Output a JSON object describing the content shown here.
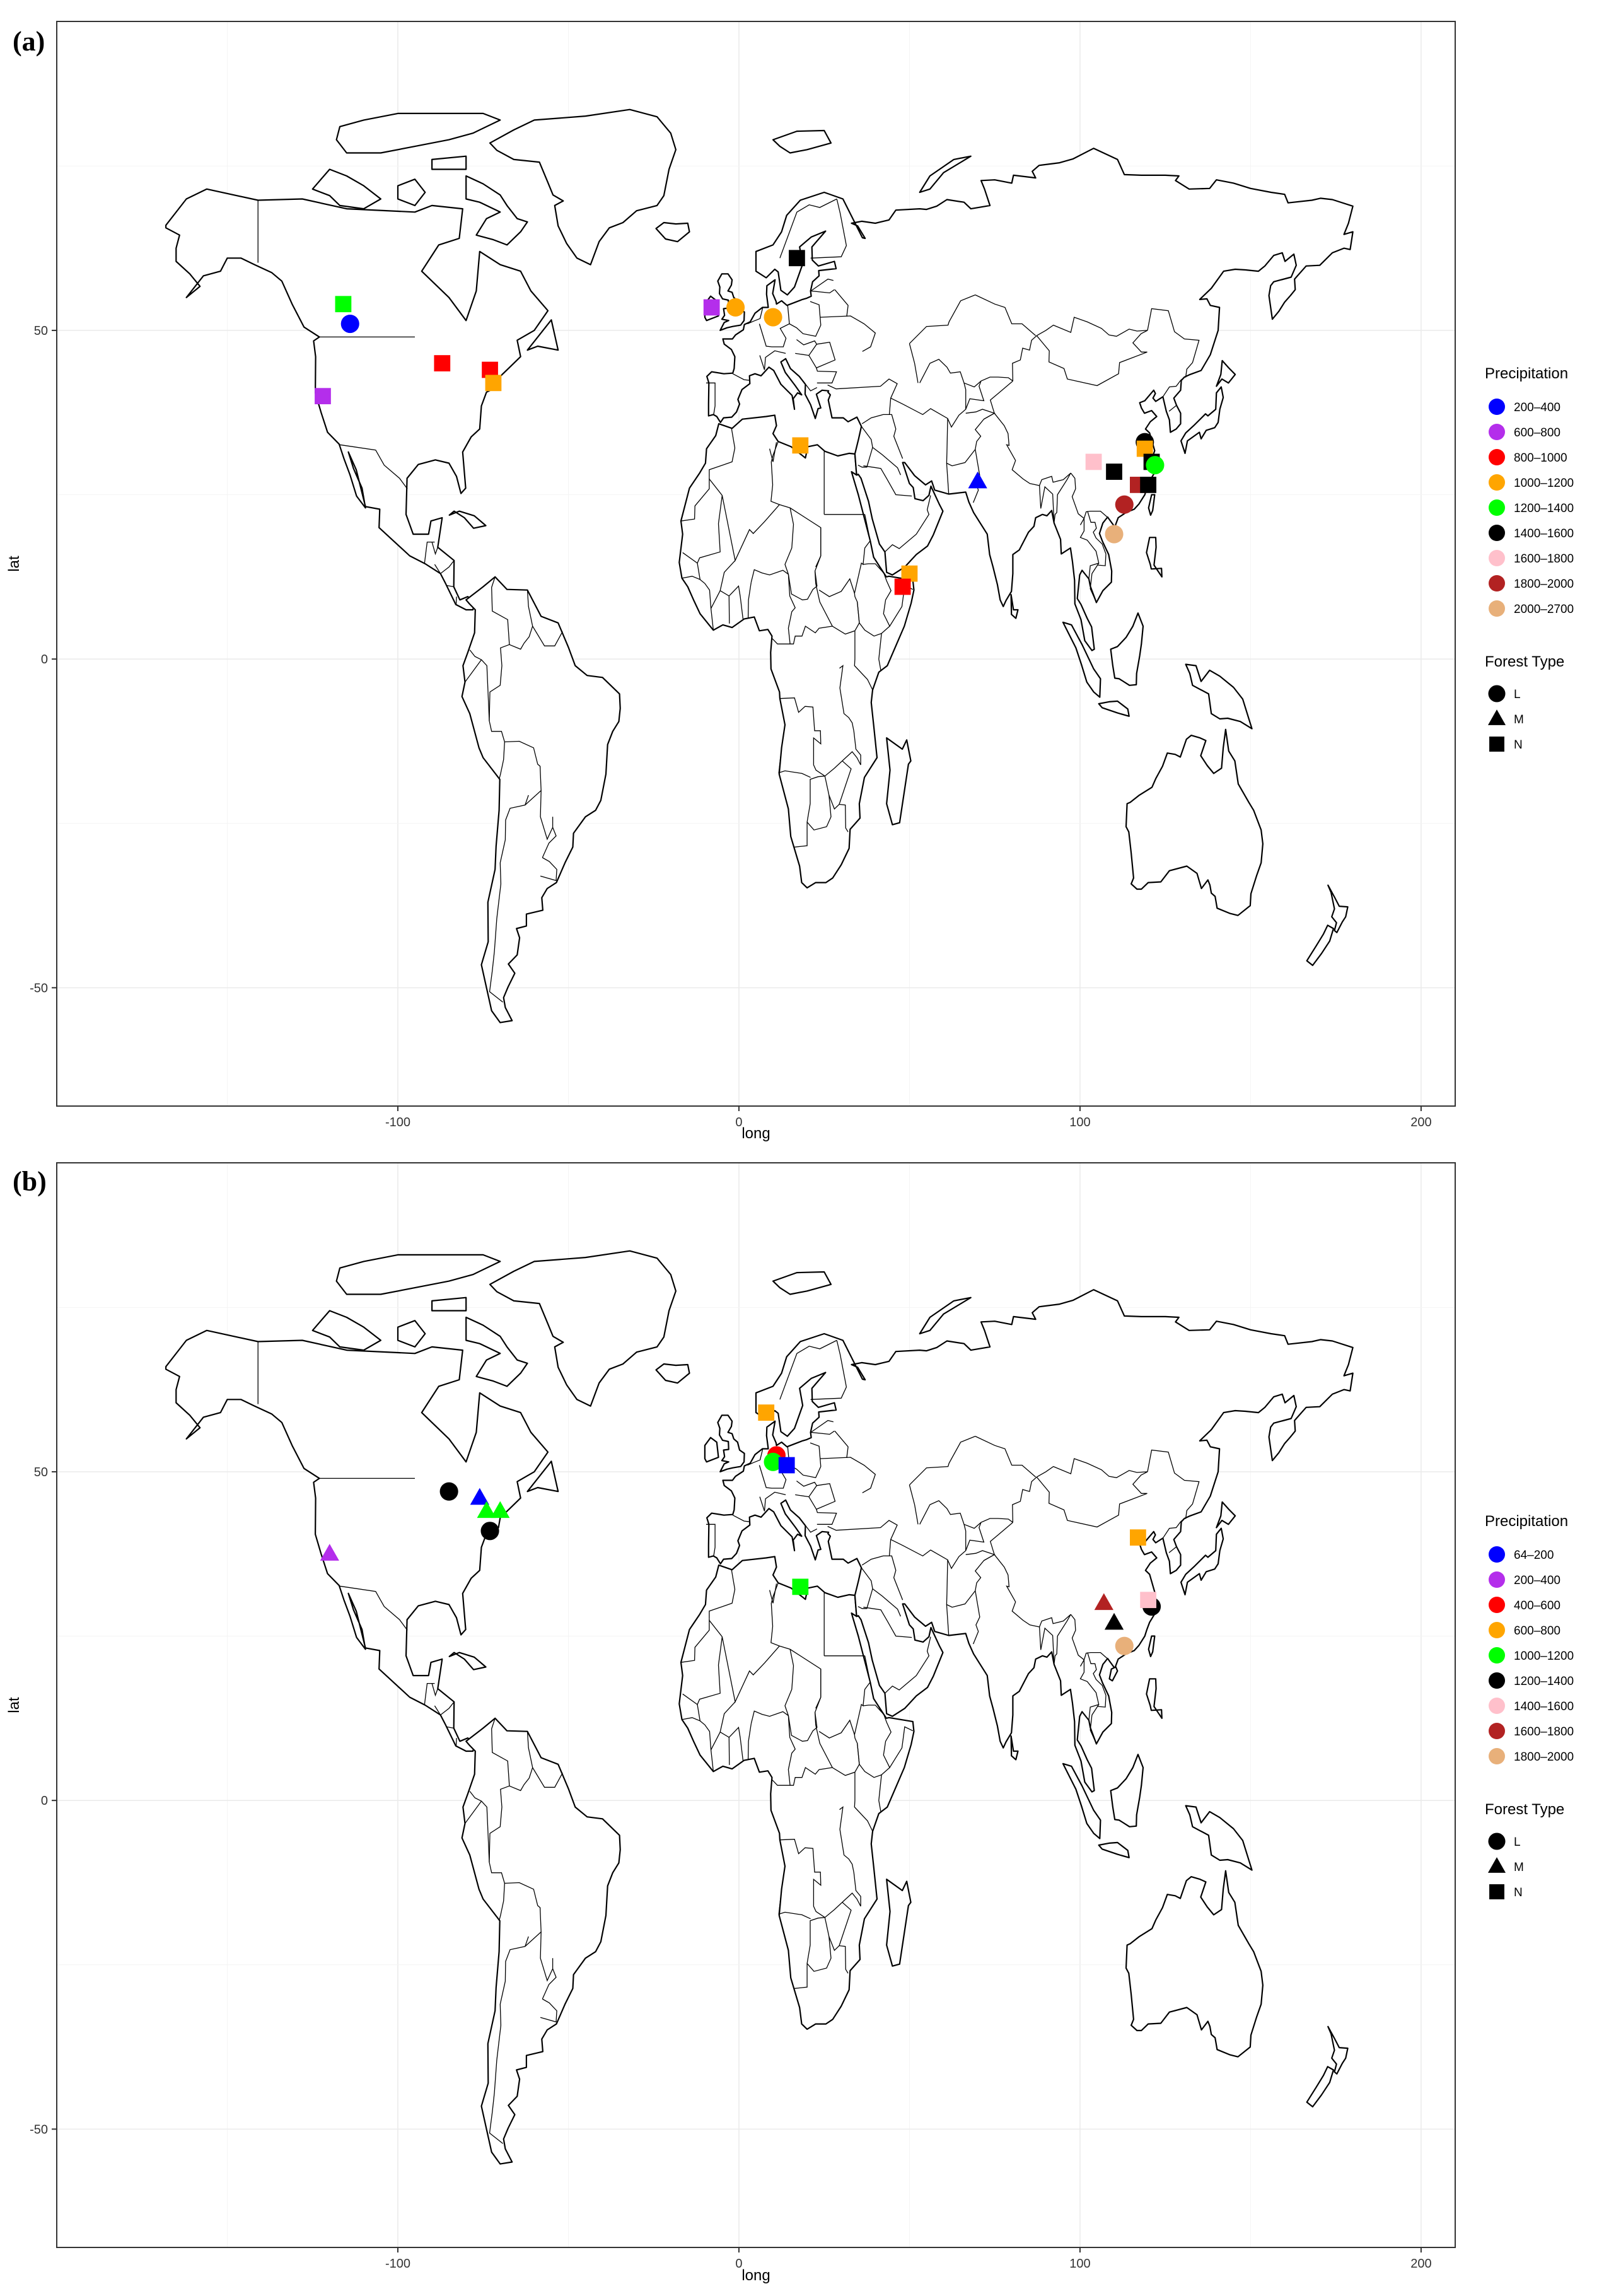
{
  "chart_data": [
    {
      "panel_label": "(a)",
      "type": "scatter",
      "xlabel": "long",
      "ylabel": "lat",
      "xlim": [
        -200,
        210
      ],
      "ylim": [
        -68,
        97
      ],
      "x_ticks": [
        -100,
        0,
        100,
        200
      ],
      "y_ticks": [
        -50,
        0,
        50
      ],
      "grid": true,
      "legend_placement": "right",
      "legend_color_title": "Precipitation",
      "legend_shape_title": "Forest Type",
      "precip_classes": [
        {
          "label": "200–400",
          "color": "#0000ff"
        },
        {
          "label": "600–800",
          "color": "#b42eeb"
        },
        {
          "label": "800–1000",
          "color": "#ff0000"
        },
        {
          "label": "1000–1200",
          "color": "#ffa500"
        },
        {
          "label": "1200–1400",
          "color": "#00ff00"
        },
        {
          "label": "1400–1600",
          "color": "#000000"
        },
        {
          "label": "1600–1800",
          "color": "#ffc0cb"
        },
        {
          "label": "1800–2000",
          "color": "#b22222"
        },
        {
          "label": "2000–2700",
          "color": "#e8b07a"
        }
      ],
      "forest_types": [
        {
          "label": "L",
          "shape": "circle"
        },
        {
          "label": "M",
          "shape": "triangle"
        },
        {
          "label": "N",
          "shape": "square"
        }
      ],
      "points": [
        {
          "x": -114,
          "y": 51,
          "class": 0,
          "type": "L"
        },
        {
          "x": -116,
          "y": 54,
          "class": 4,
          "type": "N"
        },
        {
          "x": -122,
          "y": 40,
          "class": 1,
          "type": "N"
        },
        {
          "x": -87,
          "y": 45,
          "class": 2,
          "type": "N"
        },
        {
          "x": -73,
          "y": 44,
          "class": 2,
          "type": "N"
        },
        {
          "x": -72,
          "y": 42,
          "class": 3,
          "type": "N"
        },
        {
          "x": -8,
          "y": 53.5,
          "class": 1,
          "type": "N"
        },
        {
          "x": -1,
          "y": 53.5,
          "class": 3,
          "type": "L"
        },
        {
          "x": 10,
          "y": 52,
          "class": 3,
          "type": "L"
        },
        {
          "x": 17,
          "y": 61,
          "class": 5,
          "type": "N"
        },
        {
          "x": 18,
          "y": 32.5,
          "class": 3,
          "type": "N"
        },
        {
          "x": 70,
          "y": 27,
          "class": 0,
          "type": "M"
        },
        {
          "x": 50,
          "y": 13,
          "class": 3,
          "type": "N"
        },
        {
          "x": 48,
          "y": 11,
          "class": 2,
          "type": "N"
        },
        {
          "x": 104,
          "y": 30,
          "class": 6,
          "type": "N"
        },
        {
          "x": 110,
          "y": 28.5,
          "class": 5,
          "type": "N"
        },
        {
          "x": 119,
          "y": 33,
          "class": 5,
          "type": "L"
        },
        {
          "x": 119,
          "y": 32,
          "class": 3,
          "type": "N"
        },
        {
          "x": 121,
          "y": 30,
          "class": 5,
          "type": "N"
        },
        {
          "x": 122,
          "y": 29.5,
          "class": 4,
          "type": "L"
        },
        {
          "x": 117,
          "y": 26.5,
          "class": 7,
          "type": "N"
        },
        {
          "x": 120,
          "y": 26.5,
          "class": 5,
          "type": "N"
        },
        {
          "x": 113,
          "y": 23.5,
          "class": 7,
          "type": "L"
        },
        {
          "x": 110,
          "y": 19,
          "class": 8,
          "type": "L"
        }
      ]
    },
    {
      "panel_label": "(b)",
      "type": "scatter",
      "xlabel": "long",
      "ylabel": "lat",
      "xlim": [
        -200,
        210
      ],
      "ylim": [
        -68,
        97
      ],
      "x_ticks": [
        -100,
        0,
        100,
        200
      ],
      "y_ticks": [
        -50,
        0,
        50
      ],
      "grid": true,
      "legend_placement": "right",
      "legend_color_title": "Precipitation",
      "legend_shape_title": "Forest Type",
      "precip_classes": [
        {
          "label": "64–200",
          "color": "#0000ff"
        },
        {
          "label": "200–400",
          "color": "#b42eeb"
        },
        {
          "label": "400–600",
          "color": "#ff0000"
        },
        {
          "label": "600–800",
          "color": "#ffa500"
        },
        {
          "label": "1000–1200",
          "color": "#00ff00"
        },
        {
          "label": "1200–1400",
          "color": "#000000"
        },
        {
          "label": "1400–1600",
          "color": "#ffc0cb"
        },
        {
          "label": "1600–1800",
          "color": "#b22222"
        },
        {
          "label": "1800–2000",
          "color": "#e8b07a"
        }
      ],
      "forest_types": [
        {
          "label": "L",
          "shape": "circle"
        },
        {
          "label": "M",
          "shape": "triangle"
        },
        {
          "label": "N",
          "shape": "square"
        }
      ],
      "points": [
        {
          "x": -85,
          "y": 47,
          "class": 5,
          "type": "L"
        },
        {
          "x": -76,
          "y": 46,
          "class": 0,
          "type": "M"
        },
        {
          "x": -74,
          "y": 44,
          "class": 4,
          "type": "M"
        },
        {
          "x": -70,
          "y": 44,
          "class": 4,
          "type": "M"
        },
        {
          "x": -73,
          "y": 41,
          "class": 5,
          "type": "L"
        },
        {
          "x": -120,
          "y": 37.5,
          "class": 1,
          "type": "M"
        },
        {
          "x": 8,
          "y": 59,
          "class": 3,
          "type": "N"
        },
        {
          "x": 11,
          "y": 52.5,
          "class": 2,
          "type": "L"
        },
        {
          "x": 10,
          "y": 51.5,
          "class": 4,
          "type": "L"
        },
        {
          "x": 14,
          "y": 51,
          "class": 0,
          "type": "N"
        },
        {
          "x": 18,
          "y": 32.5,
          "class": 4,
          "type": "N"
        },
        {
          "x": 117,
          "y": 40,
          "class": 3,
          "type": "N"
        },
        {
          "x": 107,
          "y": 30,
          "class": 7,
          "type": "M"
        },
        {
          "x": 110,
          "y": 27,
          "class": 5,
          "type": "M"
        },
        {
          "x": 121,
          "y": 29.5,
          "class": 5,
          "type": "L"
        },
        {
          "x": 120,
          "y": 30.5,
          "class": 6,
          "type": "N"
        },
        {
          "x": 113,
          "y": 23.5,
          "class": 8,
          "type": "L"
        }
      ]
    }
  ]
}
